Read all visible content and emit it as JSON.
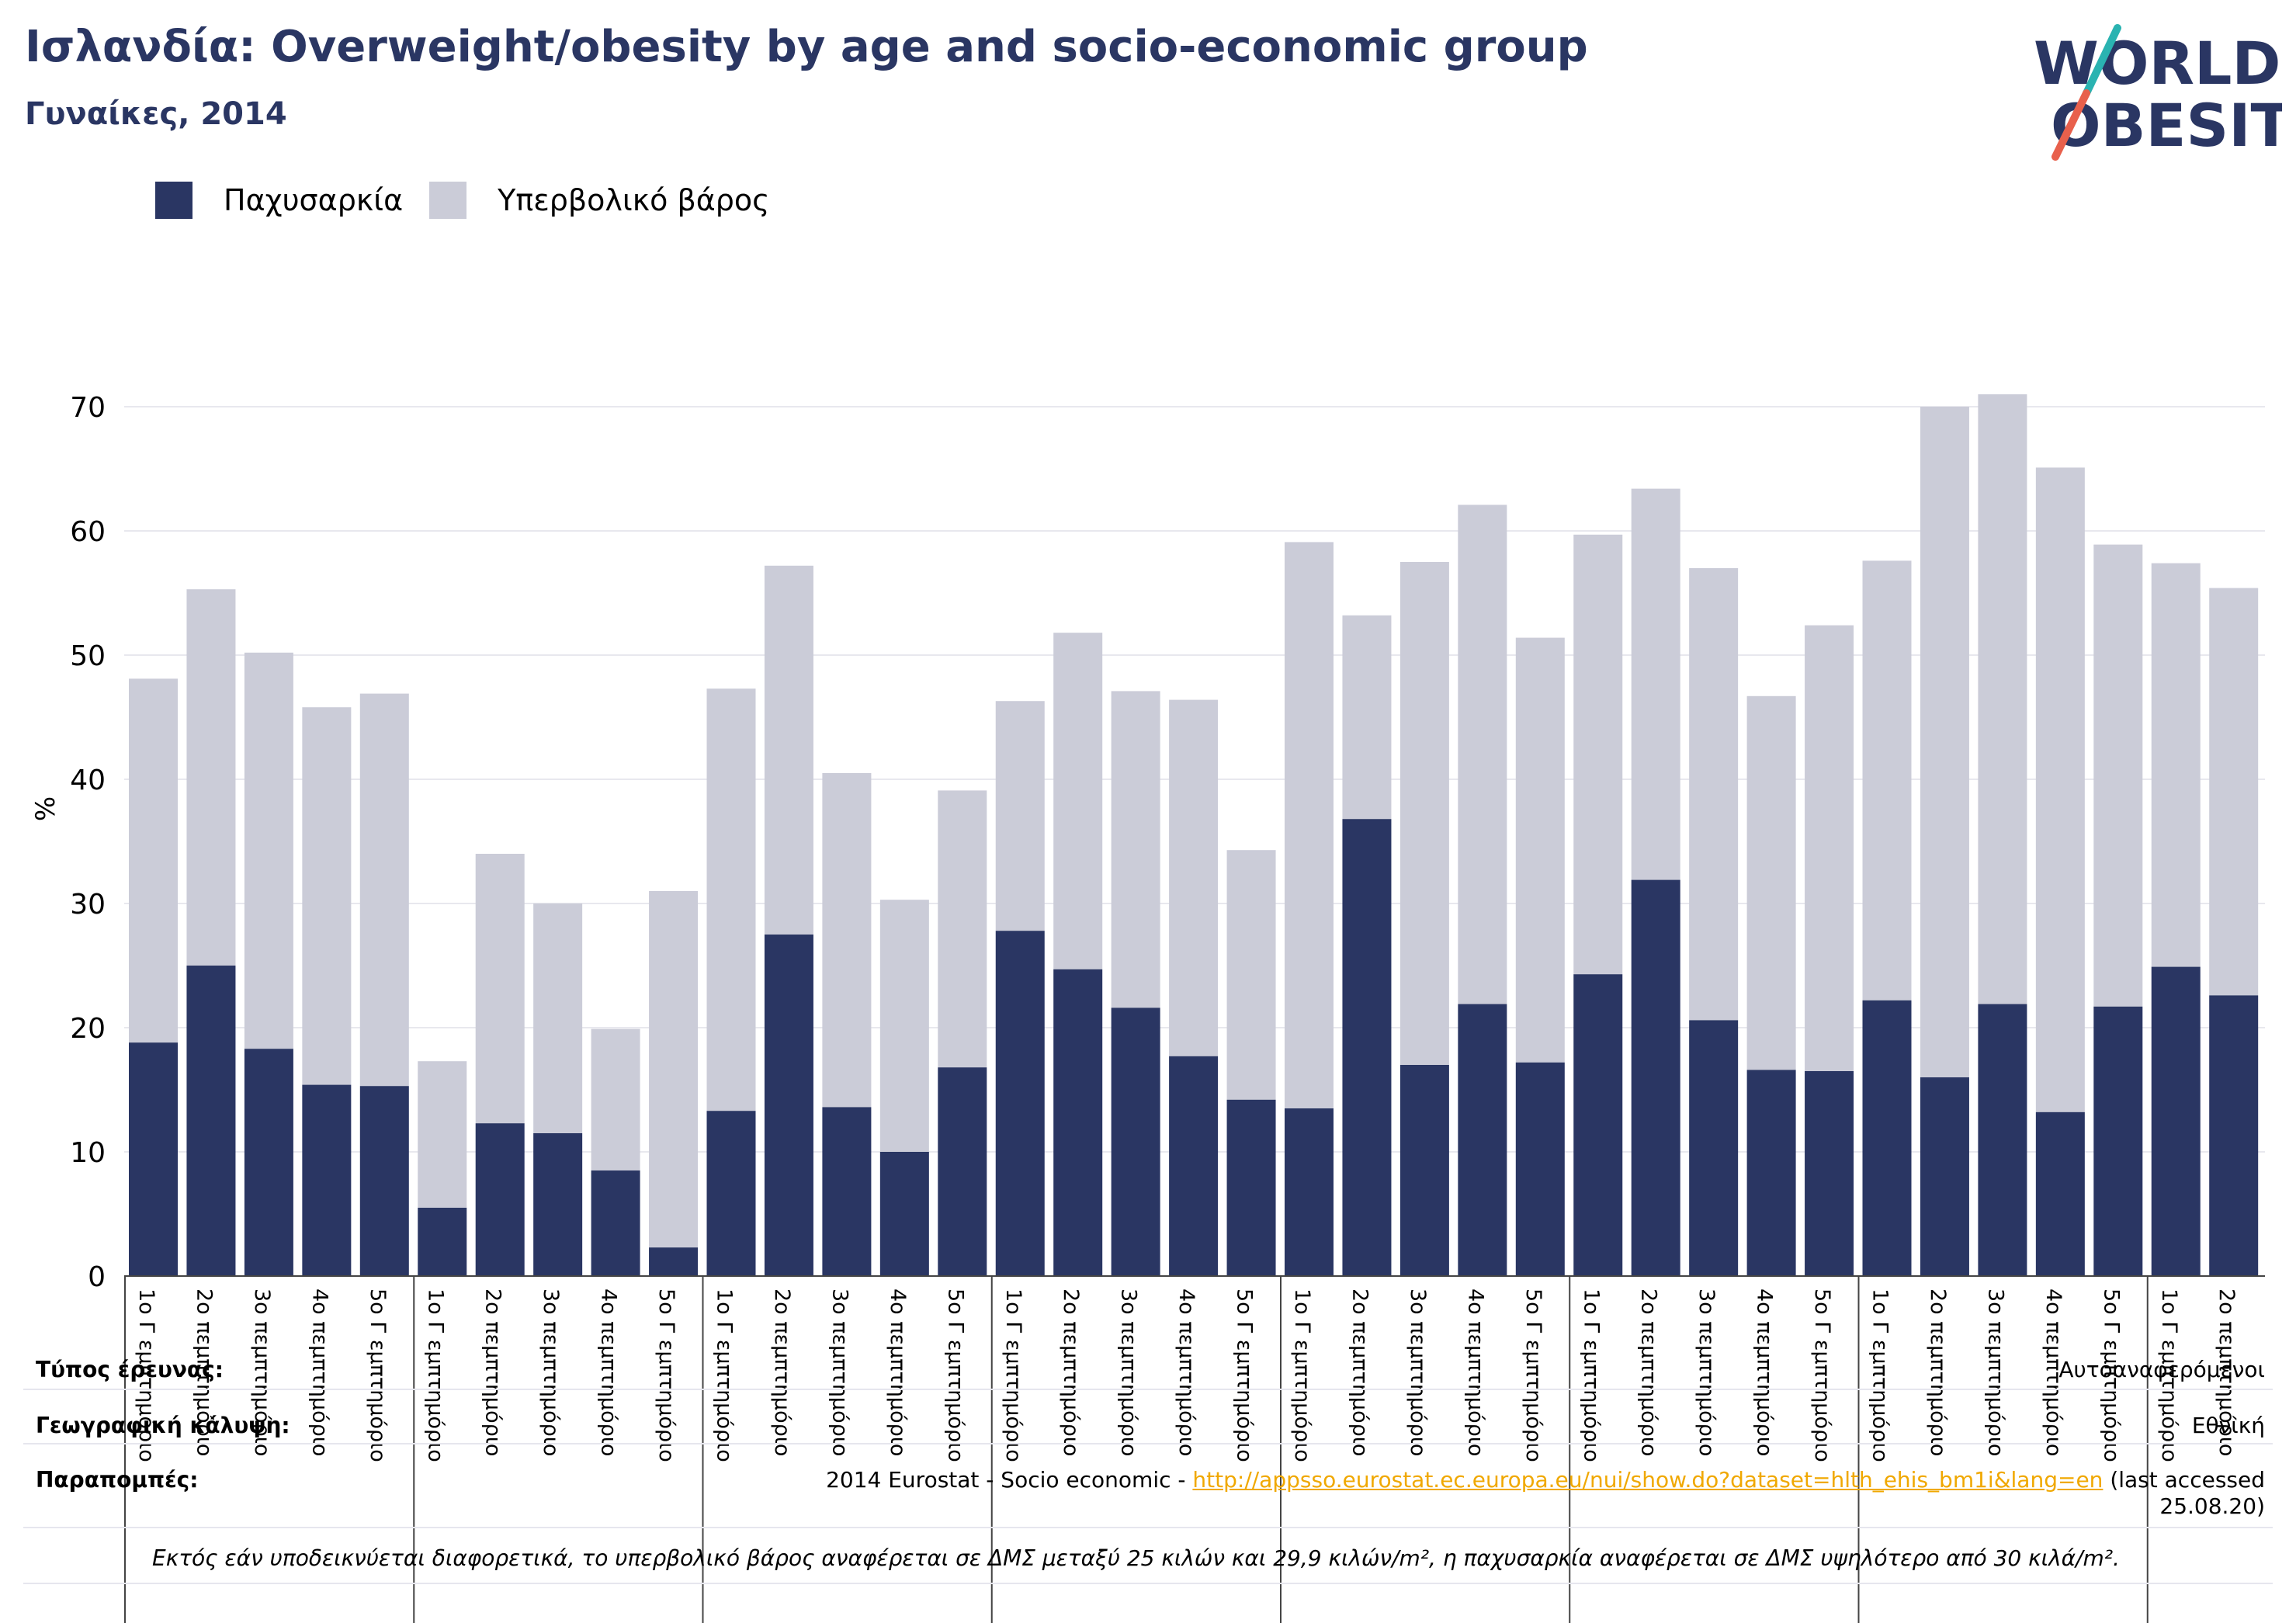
{
  "title": "Ισλανδία: Overweight/obesity by age and socio-economic group",
  "subtitle": "Γυναίκες, 2014",
  "logo": {
    "line1": "WORLD",
    "line2": "OBESITY",
    "colors": {
      "text": "#2a3663",
      "slash_top": "#2ab3b1",
      "slash_bottom": "#e8604c"
    }
  },
  "legend": [
    {
      "label": "Παχυσαρκία",
      "color": "#2a3663"
    },
    {
      "label": "Υπερβολικό βάρος",
      "color": "#cbccd8"
    }
  ],
  "chart_data": {
    "type": "bar",
    "stacked": true,
    "ylabel": "%",
    "ylim": [
      0,
      75
    ],
    "yticks": [
      0,
      10,
      20,
      30,
      40,
      50,
      60,
      70
    ],
    "grid": true,
    "legend_position": "top-left",
    "categories": [
      "1ο Γ εμπτημόριο",
      "2ο πεμπτημόριο",
      "3ο πεμπτημόριο",
      "4ο πεμπτημόριο",
      "5ο Γ εμπτημόριο",
      "1ο Γ εμπτημόριο",
      "2ο πεμπτημόριο",
      "3ο πεμπτημόριο",
      "4ο πεμπτημόριο",
      "5ο Γ εμπτημόριο",
      "1ο Γ εμπτημόριο",
      "2ο πεμπτημόριο",
      "3ο πεμπτημόριο",
      "4ο πεμπτημόριο",
      "5ο Γ εμπτημόριο",
      "1ο Γ εμπτημόριο",
      "2ο πεμπτημόριο",
      "3ο πεμπτημόριο",
      "4ο πεμπτημόριο",
      "5ο Γ εμπτημόριο",
      "1ο Γ εμπτημόριο",
      "2ο πεμπτημόριο",
      "3ο πεμπτημόριο",
      "4ο πεμπτημόριο",
      "5ο Γ εμπτημόριο",
      "1ο Γ εμπτημόριο",
      "2ο πεμπτημόριο",
      "3ο πεμπτημόριο",
      "4ο πεμπτημόριο",
      "5ο Γ εμπτημόριο",
      "1ο Γ εμπτημόριο",
      "2ο πεμπτημόριο",
      "3ο πεμπτημόριο",
      "4ο πεμπτημόριο",
      "5ο Γ εμπτημόριο",
      "1ο Γ εμπτημόριο",
      "2ο πεμπτημόριο"
    ],
    "series": [
      {
        "name": "Παχυσαρκία",
        "color": "#2a3663",
        "values": [
          18.8,
          25.0,
          18.3,
          15.4,
          15.3,
          5.5,
          12.3,
          11.5,
          8.5,
          2.3,
          13.3,
          27.5,
          13.6,
          10.0,
          16.8,
          27.8,
          24.7,
          21.6,
          17.7,
          14.2,
          13.5,
          36.8,
          17.0,
          21.9,
          17.2,
          24.3,
          31.9,
          20.6,
          16.6,
          16.5,
          22.2,
          16.0,
          21.9,
          13.2,
          21.7,
          24.9,
          22.6
        ]
      },
      {
        "name": "Υπερβολικό βάρος",
        "color": "#cbccd8",
        "values": [
          29.3,
          30.3,
          31.9,
          30.4,
          31.6,
          11.8,
          21.7,
          18.5,
          11.4,
          28.7,
          34.0,
          29.7,
          26.9,
          20.3,
          22.3,
          18.5,
          27.1,
          25.5,
          28.7,
          20.1,
          45.6,
          16.4,
          40.5,
          40.2,
          34.2,
          35.4,
          31.5,
          36.4,
          30.1,
          35.9,
          35.4,
          54.0,
          49.1,
          51.9,
          37.2,
          32.5,
          32.8
        ]
      }
    ]
  },
  "footer": {
    "survey_type_label": "Τύπος έρευνας:",
    "survey_type_value": "Αυτοαναφερόμενοι",
    "coverage_label": "Γεωγραφική κάλυψη:",
    "coverage_value": "Εθνική",
    "refs_label": "Παραπομπές:",
    "refs_prefix": "2014 Eurostat - Socio economic - ",
    "refs_link": "http://appsso.eurostat.ec.europa.eu/nui/show.do?dataset=hlth_ehis_bm1i&lang=en",
    "refs_suffix": " (last accessed",
    "refs_date": "25.08.20)",
    "note": "Εκτός εάν υποδεικνύεται διαφορετικά, το υπερβολικό βάρος αναφέρεται σε ΔΜΣ μεταξύ 25 κιλών και 29,9 κιλών/m², η παχυσαρκία αναφέρεται σε ΔΜΣ υψηλότερο από 30 κιλά/m²."
  }
}
